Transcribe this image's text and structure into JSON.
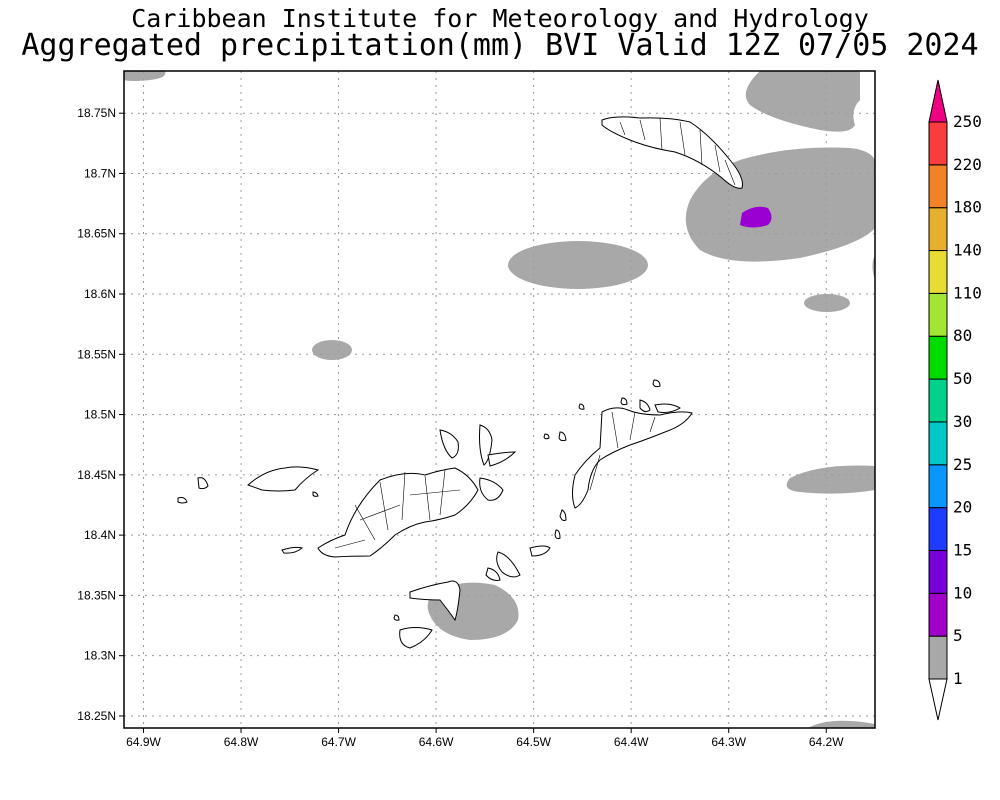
{
  "header": {
    "line1": "Caribbean Institute for Meteorology and Hydrology",
    "line2": "Aggregated precipitation(mm) BVI Valid 12Z 07/05 2024"
  },
  "map": {
    "lon_range": [
      -64.92,
      -64.15
    ],
    "lat_range": [
      18.24,
      18.785
    ],
    "lon_ticks": [
      {
        "value": -64.9,
        "label": "64.9W"
      },
      {
        "value": -64.8,
        "label": "64.8W"
      },
      {
        "value": -64.7,
        "label": "64.7W"
      },
      {
        "value": -64.6,
        "label": "64.6W"
      },
      {
        "value": -64.5,
        "label": "64.5W"
      },
      {
        "value": -64.4,
        "label": "64.4W"
      },
      {
        "value": -64.3,
        "label": "64.3W"
      },
      {
        "value": -64.2,
        "label": "64.2W"
      }
    ],
    "lat_ticks": [
      {
        "value": 18.25,
        "label": "18.25N"
      },
      {
        "value": 18.3,
        "label": "18.3N"
      },
      {
        "value": 18.35,
        "label": "18.35N"
      },
      {
        "value": 18.4,
        "label": "18.4N"
      },
      {
        "value": 18.45,
        "label": "18.45N"
      },
      {
        "value": 18.5,
        "label": "18.5N"
      },
      {
        "value": 18.55,
        "label": "18.55N"
      },
      {
        "value": 18.6,
        "label": "18.6N"
      },
      {
        "value": 18.65,
        "label": "18.65N"
      },
      {
        "value": 18.7,
        "label": "18.7N"
      },
      {
        "value": 18.75,
        "label": "18.75N"
      }
    ],
    "precip_gray": "#a8a8a8",
    "precip_purple": "#9b00d2"
  },
  "colorbar": {
    "levels": [
      "1",
      "5",
      "10",
      "15",
      "20",
      "25",
      "30",
      "50",
      "80",
      "110",
      "140",
      "180",
      "220",
      "250"
    ],
    "colors": [
      "#ffffff",
      "#a8a8a8",
      "#a000c8",
      "#7800dc",
      "#1e3cff",
      "#0a96ff",
      "#00c8c8",
      "#00d28c",
      "#00dc00",
      "#a0e632",
      "#e6dc32",
      "#e6af2d",
      "#f08228",
      "#fa3c3c",
      "#f00082"
    ]
  }
}
